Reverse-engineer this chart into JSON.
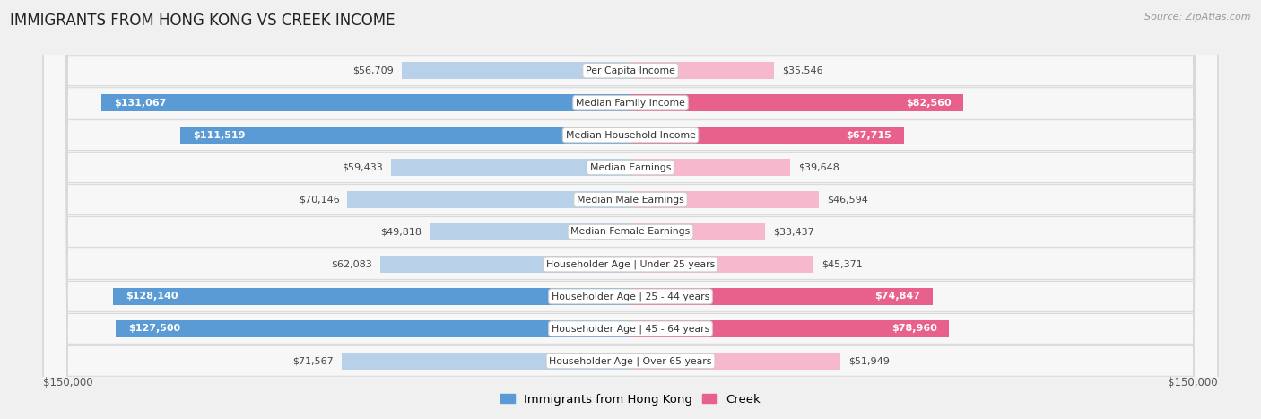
{
  "title": "IMMIGRANTS FROM HONG KONG VS CREEK INCOME",
  "source": "Source: ZipAtlas.com",
  "categories": [
    "Per Capita Income",
    "Median Family Income",
    "Median Household Income",
    "Median Earnings",
    "Median Male Earnings",
    "Median Female Earnings",
    "Householder Age | Under 25 years",
    "Householder Age | 25 - 44 years",
    "Householder Age | 45 - 64 years",
    "Householder Age | Over 65 years"
  ],
  "hk_values": [
    56709,
    131067,
    111519,
    59433,
    70146,
    49818,
    62083,
    128140,
    127500,
    71567
  ],
  "creek_values": [
    35546,
    82560,
    67715,
    39648,
    46594,
    33437,
    45371,
    74847,
    78960,
    51949
  ],
  "hk_labels": [
    "$56,709",
    "$131,067",
    "$111,519",
    "$59,433",
    "$70,146",
    "$49,818",
    "$62,083",
    "$128,140",
    "$127,500",
    "$71,567"
  ],
  "creek_labels": [
    "$35,546",
    "$82,560",
    "$67,715",
    "$39,648",
    "$46,594",
    "$33,437",
    "$45,371",
    "$74,847",
    "$78,960",
    "$51,949"
  ],
  "max_value": 150000,
  "hk_color_light": "#b8d0e8",
  "hk_color_dark": "#5b9bd5",
  "creek_color_light": "#f5b8cc",
  "creek_color_dark": "#e8618c",
  "bg_color": "#f0f0f0",
  "row_bg": "#f7f7f7",
  "row_border": "#d8d8d8",
  "hk_threshold": 80000,
  "creek_threshold": 60000
}
